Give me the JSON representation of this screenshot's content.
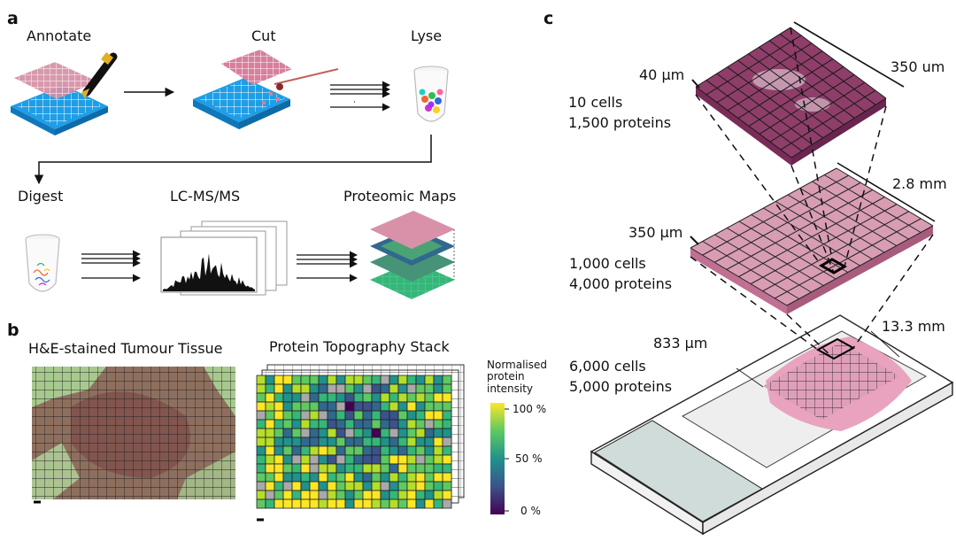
{
  "panels": {
    "a": "a",
    "b": "b",
    "c": "c"
  },
  "workflow": {
    "annotate": "Annotate",
    "cut": "Cut",
    "lyse": "Lyse",
    "digest": "Digest",
    "lcms": "LC-MS/MS",
    "maps": "Proteomic Maps"
  },
  "panel_b": {
    "he_title": "H&E-stained Tumour Tissue",
    "stack_title": "Protein Topography Stack",
    "colorbar": {
      "label_lines": [
        "Normalised",
        "protein",
        "intensity"
      ],
      "ticks": [
        "100 %",
        "50 %",
        "0 %"
      ],
      "colors": [
        "#fde725",
        "#21918c",
        "#440154"
      ]
    }
  },
  "panel_c": {
    "top": {
      "side": "40 µm",
      "width": "350 um",
      "cells": "10 cells",
      "proteins": "1,500 proteins"
    },
    "middle": {
      "side": "350 µm",
      "width": "2.8 mm",
      "cells": "1,000 cells",
      "proteins": "4,000 proteins"
    },
    "slide": {
      "side": "833 µm",
      "width": "13.3 mm",
      "cells": "6,000 cells",
      "proteins": "5,000 proteins"
    }
  }
}
